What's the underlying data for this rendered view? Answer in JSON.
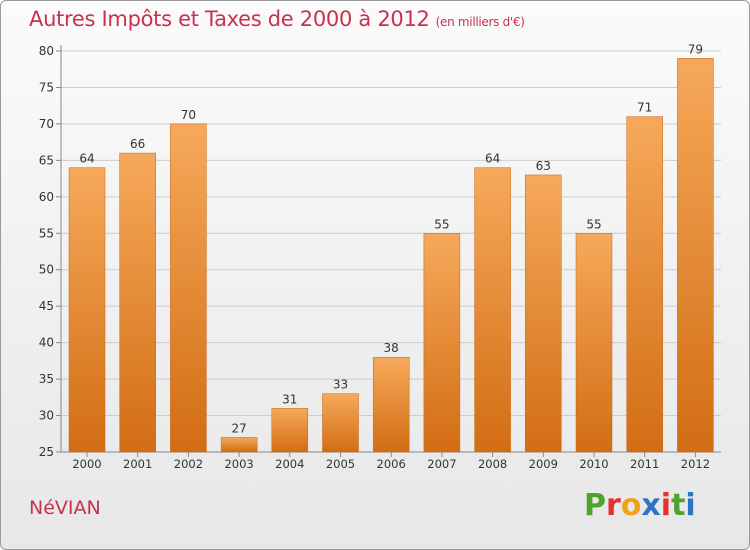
{
  "title": "Autres Impôts et Taxes de 2000 à 2012",
  "unit_label": "(en milliers d'€)",
  "city": "NéVIAN",
  "logo": {
    "letters": [
      {
        "ch": "P",
        "color": "#4fa32c"
      },
      {
        "ch": "r",
        "color": "#e8312f"
      },
      {
        "ch": "o",
        "color": "#f0a21a"
      },
      {
        "ch": "x",
        "color": "#2f74c4"
      },
      {
        "ch": "i",
        "color": "#e8312f"
      },
      {
        "ch": "t",
        "color": "#4fa32c"
      },
      {
        "ch": "i",
        "color": "#2f74c4"
      }
    ]
  },
  "colors": {
    "title": "#c8324f",
    "bar_light": "#f6a95a",
    "bar_dark": "#d26d14",
    "grid": "#cccccc"
  },
  "chart_data": {
    "type": "bar",
    "title": "Autres Impôts et Taxes de 2000 à 2012",
    "subtitle": "(en milliers d'€)",
    "categories": [
      "2000",
      "2001",
      "2002",
      "2003",
      "2004",
      "2005",
      "2006",
      "2007",
      "2008",
      "2009",
      "2010",
      "2011",
      "2012"
    ],
    "values": [
      64,
      66,
      70,
      27,
      31,
      33,
      38,
      55,
      64,
      63,
      55,
      71,
      79
    ],
    "ylim": [
      25,
      80
    ],
    "yticks": [
      25,
      30,
      35,
      40,
      45,
      50,
      55,
      60,
      65,
      70,
      75,
      80
    ],
    "grid": true,
    "data_labels": true
  }
}
